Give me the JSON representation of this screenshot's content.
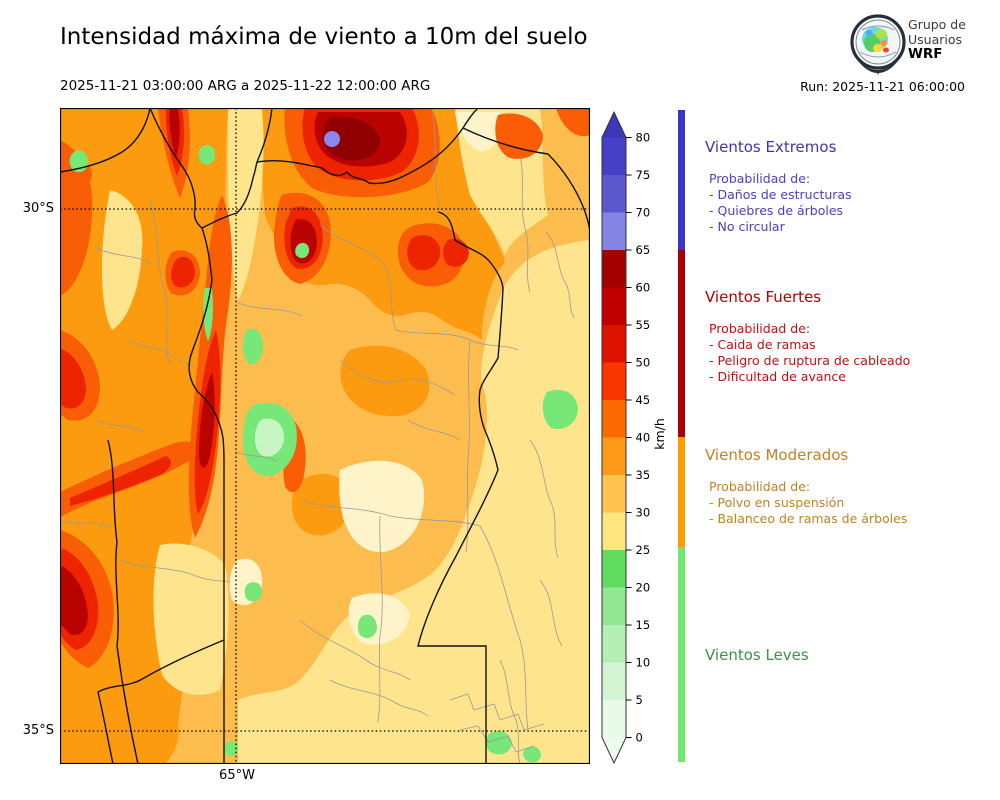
{
  "header": {
    "title": "Intensidad máxima de viento a 10m del suelo",
    "period": "2025-11-21 03:00:00 ARG  a  2025-11-22 12:00:00 ARG",
    "run_label": "Run: 2025-11-21 06:00:00"
  },
  "logo": {
    "line1": "Grupo de",
    "line2": "Usuarios",
    "line3": "WRF"
  },
  "map": {
    "lat_labels": [
      "30°S",
      "35°S"
    ],
    "lon_labels": [
      "65°W"
    ],
    "palette": {
      "base": "#fdbd4e",
      "paleYellow": "#fee48d",
      "cream": "#fff3c9",
      "orange": "#fc9a10",
      "orangeRed": "#f95d05",
      "red": "#ee2400",
      "darkRed": "#b80300",
      "darkestRed": "#900000",
      "purple": "#8a88ec",
      "green": "#77e877",
      "lightGreen": "#c8f6c2",
      "provinceLine": "#111111",
      "deptLine": "#9a9a9a"
    }
  },
  "colorbar": {
    "unit": "km/h",
    "ticks": [
      0,
      5,
      10,
      15,
      20,
      25,
      30,
      35,
      40,
      45,
      50,
      55,
      60,
      65,
      70,
      75,
      80
    ],
    "arrow_top_color": "#3c38b8",
    "arrow_bottom_color": "#edfbed",
    "segments": [
      {
        "from": 0,
        "to": 5,
        "color": "#e9fae9"
      },
      {
        "from": 5,
        "to": 10,
        "color": "#d3f5d3"
      },
      {
        "from": 10,
        "to": 15,
        "color": "#b4efb4"
      },
      {
        "from": 15,
        "to": 20,
        "color": "#92e792"
      },
      {
        "from": 20,
        "to": 25,
        "color": "#5fdd5f"
      },
      {
        "from": 25,
        "to": 30,
        "color": "#ffe57d"
      },
      {
        "from": 30,
        "to": 35,
        "color": "#fec44f"
      },
      {
        "from": 35,
        "to": 40,
        "color": "#fe9a18"
      },
      {
        "from": 40,
        "to": 45,
        "color": "#fc6b03"
      },
      {
        "from": 45,
        "to": 50,
        "color": "#fb3500"
      },
      {
        "from": 50,
        "to": 55,
        "color": "#df1200"
      },
      {
        "from": 55,
        "to": 60,
        "color": "#c00000"
      },
      {
        "from": 60,
        "to": 65,
        "color": "#a30000"
      },
      {
        "from": 65,
        "to": 70,
        "color": "#8583e3"
      },
      {
        "from": 70,
        "to": 75,
        "color": "#5b57cf"
      },
      {
        "from": 75,
        "to": 80,
        "color": "#4540c6"
      }
    ]
  },
  "categories": [
    {
      "name": "Vientos Extremos",
      "bar_color": "#3a35c8",
      "prob_label": "Probabilidad de:",
      "items": [
        "- Daños de estructuras",
        "- Quiebres de árboles",
        "- No circular"
      ]
    },
    {
      "name": "Vientos Fuertes",
      "bar_color": "#a80000",
      "prob_label": "Probabilidad de:",
      "items": [
        "- Caida de ramas",
        "- Peligro de ruptura de cableado",
        "- Dificultad de avance"
      ]
    },
    {
      "name": "Vientos Moderados",
      "bar_color": "#ff9c00",
      "prob_label": "Probabilidad de:",
      "items": [
        "- Polvo en suspensión",
        "- Balanceo de ramas de árboles"
      ]
    },
    {
      "name": "Vientos Leves",
      "bar_color": "#6ee86e",
      "prob_label": "",
      "items": []
    }
  ]
}
